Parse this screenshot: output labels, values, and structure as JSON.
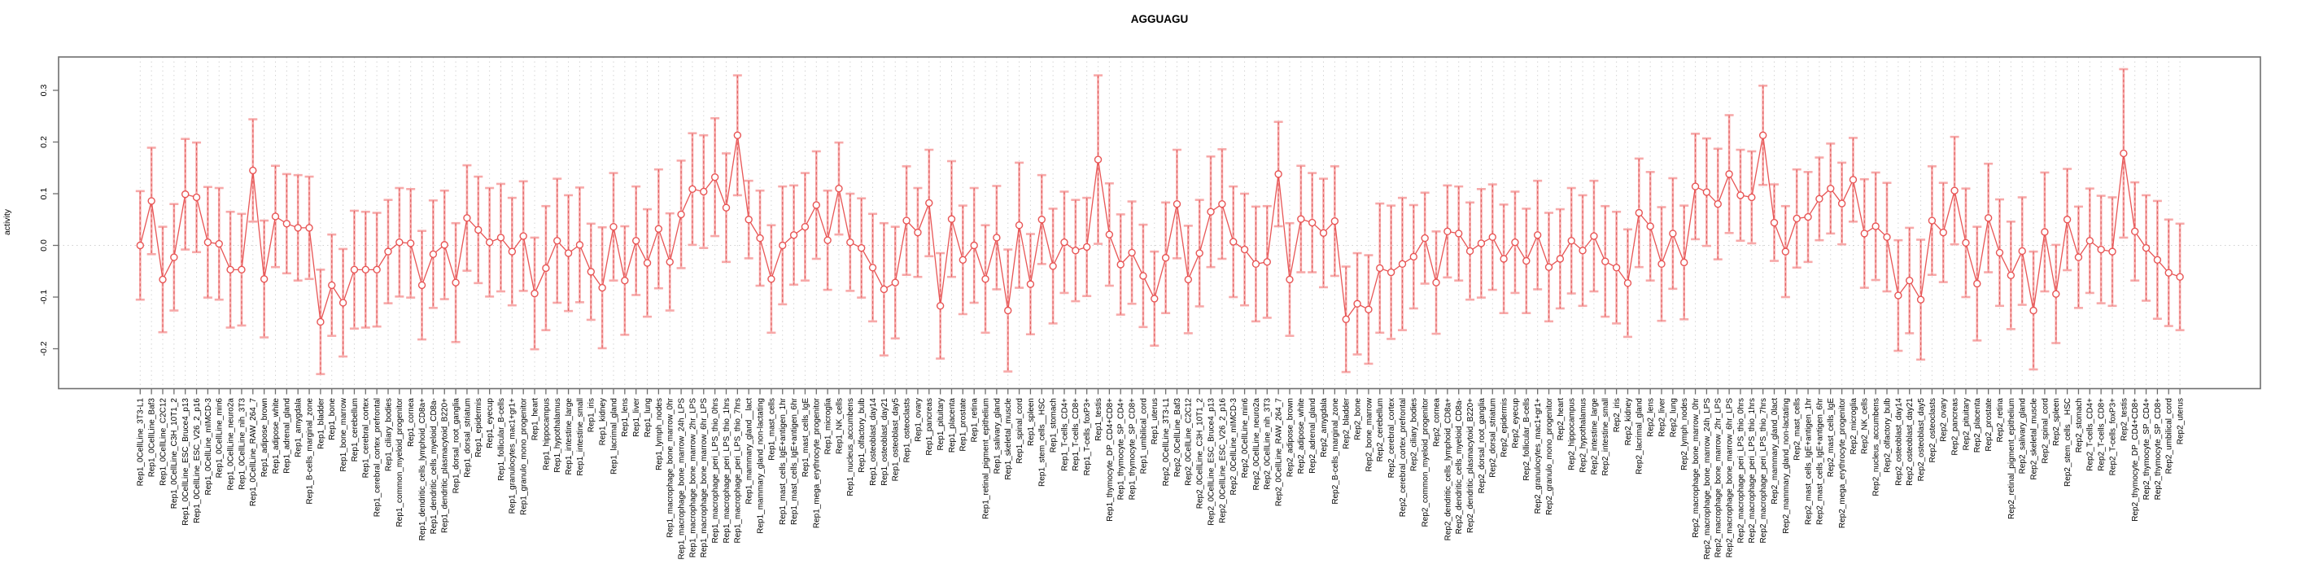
{
  "chart_data": {
    "type": "scatter",
    "title": "AGGUAGU",
    "xlabel": "",
    "ylabel": "activity",
    "ylim": [
      -0.277,
      0.365
    ],
    "yticks": [
      0.3,
      0.2,
      0.1,
      0.0,
      -0.1,
      -0.2
    ],
    "grid": "vertical dotted line per sample, dotted horizontal line at 0",
    "legend": "none",
    "marker": "open-circle",
    "error_bars": "plus-minus one standard error with caps",
    "samples": [
      "Rep1_0CellLine_3T3-L1",
      "Rep1_0CellLine_Baf3",
      "Rep1_0CellLine_C2C12",
      "Rep1_0CellLine_C3H_10T1_2",
      "Rep1_0CellLine_ESC_Bruce4_p13",
      "Rep1_0CellLine_ESC_V26_2_p16",
      "Rep1_0CellLine_mIMCD-3",
      "Rep1_0CellLine_min6",
      "Rep1_0CellLine_neuro2a",
      "Rep1_0CellLine_nih_3T3",
      "Rep1_0CellLine_RAW_264_7",
      "Rep1_adipose_brown",
      "Rep1_adipose_white",
      "Rep1_adrenal_gland",
      "Rep1_amygdala",
      "Rep1_B-cells_marginal_zone",
      "Rep1_bladder",
      "Rep1_bone",
      "Rep1_bone_marrow",
      "Rep1_cerebellum",
      "Rep1_cerebral_cortex",
      "Rep1_cerebral_cortex_prefrontal",
      "Rep1_ciliary_bodies",
      "Rep1_common_myeloid_progenitor",
      "Rep1_cornea",
      "Rep1_dendritic_cells_lymphoid_CD8a+",
      "Rep1_dendritic_cells_myeloid_CD8a-",
      "Rep1_dendritic_plasmacytoid_B220+",
      "Rep1_dorsal_root_ganglia",
      "Rep1_dorsal_striatum",
      "Rep1_epidermis",
      "Rep1_eyecup",
      "Rep1_follicular_B-cells",
      "Rep1_granulocytes_mac1+gr1+",
      "Rep1_granulo_mono_progenitor",
      "Rep1_heart",
      "Rep1_hippocampus",
      "Rep1_hypothalamus",
      "Rep1_intestine_large",
      "Rep1_intestine_small",
      "Rep1_iris",
      "Rep1_kidney",
      "Rep1_lacrimal_gland",
      "Rep1_lens",
      "Rep1_liver",
      "Rep1_lung",
      "Rep1_lymph_nodes",
      "Rep1_macrophage_bone_marrow_0hr",
      "Rep1_macrophage_bone_marrow_24h_LPS",
      "Rep1_macrophage_bone_marrow_2hr_LPS",
      "Rep1_macrophage_bone_marrow_6hr_LPS",
      "Rep1_macrophage_peri_LPS_thio_0hrs",
      "Rep1_macrophage_peri_LPS_thio_1hrs",
      "Rep1_macrophage_peri_LPS_thio_7hrs",
      "Rep1_mammary_gland__lact",
      "Rep1_mammary_gland_non-lactating",
      "Rep1_mast_cells",
      "Rep1_mast_cells_IgE+antigen_1hr",
      "Rep1_mast_cells_IgE+antigen_6hr",
      "Rep1_mast_cells_IgE",
      "Rep1_mega_erythrocyte_progenitor",
      "Rep1_microglia",
      "Rep1_NK_cells",
      "Rep1_nucleus_accumbens",
      "Rep1_olfactory_bulb",
      "Rep1_osteoblast_day14",
      "Rep1_osteoblast_day21",
      "Rep1_osteoblast_day5",
      "Rep1_osteoclasts",
      "Rep1_ovary",
      "Rep1_pancreas",
      "Rep1_pituitary",
      "Rep1_placenta",
      "Rep1_prostate",
      "Rep1_retina",
      "Rep1_retinal_pigment_epithelium",
      "Rep1_salivary_gland",
      "Rep1_skeletal_muscle",
      "Rep1_spinal_cord",
      "Rep1_spleen",
      "Rep1_stem_cells__HSC",
      "Rep1_stomach",
      "Rep1_T-cells_CD4+",
      "Rep1_T-cells_CD8+",
      "Rep1_T-cells_foxP3+",
      "Rep1_testis",
      "Rep1_thymocyte_DP_CD4+CD8+",
      "Rep1_thymocyte_SP_CD4+",
      "Rep1_thymocyte_SP_CD8+",
      "Rep1_umbilical_cord",
      "Rep1_uterus",
      "Rep2_0CellLine_3T3-L1",
      "Rep2_0CellLine_Baf3",
      "Rep2_0CellLine_C2C12",
      "Rep2_0CellLine_C3H_10T1_2",
      "Rep2_0CellLine_ESC_Bruce4_p13",
      "Rep2_0CellLine_ESC_V26_2_p16",
      "Rep2_0CellLine_mIMCD-3",
      "Rep2_0CellLine_min6",
      "Rep2_0CellLine_neuro2a",
      "Rep2_0CellLine_nih_3T3",
      "Rep2_0CellLine_RAW_264_7",
      "Rep2_adipose_brown",
      "Rep2_adipose_white",
      "Rep2_adrenal_gland",
      "Rep2_amygdala",
      "Rep2_B-cells_marginal_zone",
      "Rep2_bladder",
      "Rep2_bone",
      "Rep2_bone_marrow",
      "Rep2_cerebellum",
      "Rep2_cerebral_cortex",
      "Rep2_cerebral_cortex_prefrontal",
      "Rep2_ciliary_bodies",
      "Rep2_common_myeloid_progenitor",
      "Rep2_cornea",
      "Rep2_dendritic_cells_lymphoid_CD8a+",
      "Rep2_dendritic_cells_myeloid_CD8a-",
      "Rep2_dendritic_plasmacytoid_B220+",
      "Rep2_dorsal_root_ganglia",
      "Rep2_dorsal_striatum",
      "Rep2_epidermis",
      "Rep2_eyecup",
      "Rep2_follicular_B-cells",
      "Rep2_granulocytes_mac1+gr1+",
      "Rep2_granulo_mono_progenitor",
      "Rep2_heart",
      "Rep2_hippocampus",
      "Rep2_hypothalamus",
      "Rep2_intestine_large",
      "Rep2_intestine_small",
      "Rep2_iris",
      "Rep2_kidney",
      "Rep2_lacrimal_gland",
      "Rep2_lens",
      "Rep2_liver",
      "Rep2_lung",
      "Rep2_lymph_nodes",
      "Rep2_macrophage_bone_marrow_0hr",
      "Rep2_macrophage_bone_marrow_24h_LPS",
      "Rep2_macrophage_bone_marrow_2hr_LPS",
      "Rep2_macrophage_bone_marrow_6hr_LPS",
      "Rep2_macrophage_peri_LPS_thio_0hrs",
      "Rep2_macrophage_peri_LPS_thio_1hrs",
      "Rep2_macrophage_peri_LPS_thio_7hrs",
      "Rep2_mammary_gland_0lact",
      "Rep2_mammary_gland_non-lactating",
      "Rep2_mast_cells",
      "Rep2_mast_cells_IgE+antigen_1hr",
      "Rep2_mast_cells_IgE+antigen_6hr",
      "Rep2_mast_cells_IgE",
      "Rep2_mega_erythrocyte_progenitor",
      "Rep2_microglia",
      "Rep2_NK_cells",
      "Rep2_nucleus_accumbens",
      "Rep2_olfactory_bulb",
      "Rep2_osteoblast_day14",
      "Rep2_osteoblast_day21",
      "Rep2_osteoblast_day5",
      "Rep2_osteoclasts",
      "Rep2_ovary",
      "Rep2_pancreas",
      "Rep2_pituitary",
      "Rep2_placenta",
      "Rep2_prostate",
      "Rep2_retina",
      "Rep2_retinal_pigment_epithelium",
      "Rep2_salivary_gland",
      "Rep2_skeletal_muscle",
      "Rep2_spinal_cord",
      "Rep2_spleen",
      "Rep2_stem_cells__HSC",
      "Rep2_stomach",
      "Rep2_T-cells_CD4+",
      "Rep2_T-cells_CD8+",
      "Rep2_T-cells_foxP3+",
      "Rep2_testis",
      "Rep2_thymocyte_DP_CD4+CD8+",
      "Rep2_thymocyte_SP_CD4+",
      "Rep2_thymocyte_SP_CD8+",
      "Rep2_umbilical_cord",
      "Rep2_uterus"
    ],
    "values": [
      0.0,
      0.086,
      -0.066,
      -0.023,
      0.099,
      0.093,
      0.006,
      0.003,
      -0.047,
      -0.047,
      0.145,
      -0.065,
      0.056,
      0.042,
      0.034,
      0.034,
      -0.148,
      -0.077,
      -0.111,
      -0.047,
      -0.047,
      -0.047,
      -0.012,
      0.006,
      0.004,
      -0.077,
      -0.017,
      0.001,
      -0.072,
      0.053,
      0.03,
      0.006,
      0.015,
      -0.012,
      0.018,
      -0.093,
      -0.044,
      0.009,
      -0.015,
      0.001,
      -0.051,
      -0.082,
      0.036,
      -0.068,
      0.009,
      -0.034,
      0.032,
      -0.032,
      0.06,
      0.109,
      0.104,
      0.132,
      0.073,
      0.213,
      0.05,
      0.014,
      -0.065,
      0.0,
      0.02,
      0.036,
      0.078,
      0.01,
      0.11,
      0.006,
      -0.005,
      -0.043,
      -0.085,
      -0.072,
      0.048,
      0.025,
      0.082,
      -0.117,
      0.051,
      -0.028,
      0.0,
      -0.065,
      0.015,
      -0.126,
      0.039,
      -0.075,
      0.05,
      -0.04,
      0.006,
      -0.01,
      -0.003,
      0.166,
      0.021,
      -0.037,
      -0.014,
      -0.059,
      -0.103,
      -0.024,
      0.08,
      -0.066,
      -0.015,
      0.065,
      0.08,
      0.007,
      -0.008,
      -0.036,
      -0.032,
      0.138,
      -0.066,
      0.051,
      0.044,
      0.024,
      0.047,
      -0.143,
      -0.113,
      -0.124,
      -0.044,
      -0.052,
      -0.036,
      -0.022,
      0.014,
      -0.072,
      0.027,
      0.023,
      -0.011,
      0.004,
      0.016,
      -0.026,
      0.006,
      -0.03,
      0.02,
      -0.042,
      -0.026,
      0.009,
      -0.01,
      0.018,
      -0.031,
      -0.043,
      -0.073,
      0.063,
      0.037,
      -0.036,
      0.023,
      -0.033,
      0.114,
      0.103,
      0.08,
      0.138,
      0.097,
      0.093,
      0.213,
      0.044,
      -0.012,
      0.052,
      0.055,
      0.09,
      0.11,
      0.081,
      0.127,
      0.023,
      0.037,
      0.016,
      -0.097,
      -0.068,
      -0.105,
      0.048,
      0.025,
      0.106,
      0.005,
      -0.074,
      0.053,
      -0.014,
      -0.058,
      -0.011,
      -0.126,
      0.026,
      -0.094,
      0.05,
      -0.023,
      0.009,
      -0.008,
      -0.012,
      0.178,
      0.027,
      -0.005,
      -0.028,
      -0.053,
      -0.061
    ],
    "se": [
      0.105,
      0.103,
      0.102,
      0.103,
      0.107,
      0.106,
      0.107,
      0.108,
      0.112,
      0.108,
      0.099,
      0.113,
      0.098,
      0.096,
      0.102,
      0.099,
      0.101,
      0.098,
      0.104,
      0.114,
      0.112,
      0.11,
      0.1,
      0.105,
      0.105,
      0.105,
      0.104,
      0.105,
      0.115,
      0.102,
      0.103,
      0.105,
      0.104,
      0.104,
      0.106,
      0.108,
      0.12,
      0.12,
      0.112,
      0.111,
      0.093,
      0.117,
      0.104,
      0.105,
      0.105,
      0.104,
      0.115,
      0.094,
      0.104,
      0.108,
      0.109,
      0.114,
      0.105,
      0.116,
      0.075,
      0.092,
      0.104,
      0.114,
      0.096,
      0.104,
      0.104,
      0.096,
      0.089,
      0.094,
      0.096,
      0.104,
      0.128,
      0.108,
      0.105,
      0.086,
      0.103,
      0.102,
      0.112,
      0.105,
      0.111,
      0.104,
      0.1,
      0.118,
      0.121,
      0.097,
      0.086,
      0.111,
      0.098,
      0.098,
      0.095,
      0.163,
      0.099,
      0.097,
      0.099,
      0.099,
      0.091,
      0.107,
      0.105,
      0.104,
      0.103,
      0.107,
      0.106,
      0.107,
      0.108,
      0.111,
      0.108,
      0.101,
      0.109,
      0.103,
      0.096,
      0.105,
      0.106,
      0.102,
      0.098,
      0.105,
      0.125,
      0.129,
      0.128,
      0.1,
      0.088,
      0.099,
      0.089,
      0.091,
      0.094,
      0.105,
      0.102,
      0.105,
      0.098,
      0.101,
      0.105,
      0.105,
      0.096,
      0.102,
      0.107,
      0.107,
      0.107,
      0.108,
      0.104,
      0.105,
      0.105,
      0.11,
      0.107,
      0.11,
      0.102,
      0.104,
      0.107,
      0.114,
      0.088,
      0.089,
      0.096,
      0.074,
      0.088,
      0.095,
      0.087,
      0.08,
      0.087,
      0.079,
      0.081,
      0.105,
      0.104,
      0.105,
      0.107,
      0.102,
      0.116,
      0.105,
      0.096,
      0.104,
      0.105,
      0.11,
      0.105,
      0.103,
      0.104,
      0.104,
      0.114,
      0.115,
      0.095,
      0.098,
      0.098,
      0.101,
      0.104,
      0.105,
      0.163,
      0.095,
      0.102,
      0.114,
      0.103,
      0.103
    ],
    "colors": {
      "point_and_line": "#E85555",
      "error_bar": "#F7A9A9",
      "error_bar_dash": "#E06060",
      "gridline": "#D4D4D4",
      "zero_line": "#CFCFCF",
      "axis": "#6E6E6E",
      "text": "#000000",
      "background": "#FFFFFF"
    }
  }
}
